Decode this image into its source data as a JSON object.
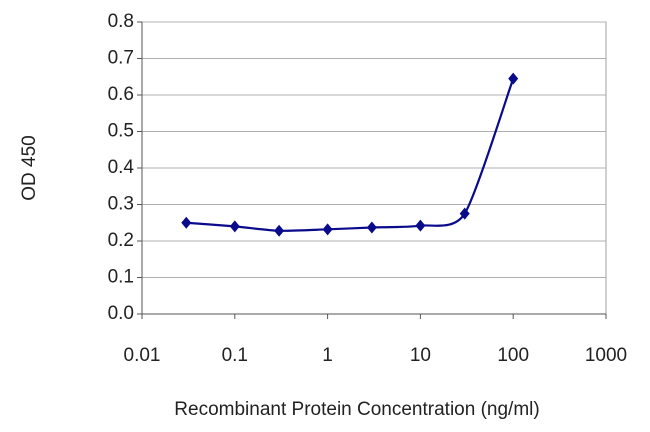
{
  "chart_data": {
    "type": "line",
    "x_label": "Recombinant Protein Concentration (ng/ml)",
    "y_label": "OD 450",
    "x": [
      0.03,
      0.1,
      0.3,
      1,
      3,
      10,
      30,
      100
    ],
    "series": [
      {
        "color": "#0a0a8c",
        "values": [
          0.25,
          0.24,
          0.228,
          0.232,
          0.237,
          0.242,
          0.275,
          0.645
        ]
      }
    ],
    "x_log": true,
    "xlim": [
      0.01,
      1000
    ],
    "xticks": [
      0.01,
      0.1,
      1,
      10,
      100,
      1000
    ],
    "ylim": [
      0,
      0.8
    ],
    "yticks": [
      {
        "value": 0,
        "label": "0.0"
      },
      {
        "value": 0.1,
        "label": "0.1"
      },
      {
        "value": 0.2,
        "label": "0.2"
      },
      {
        "value": 0.3,
        "label": "0.3"
      },
      {
        "value": 0.4,
        "label": "0.4"
      },
      {
        "value": 0.5,
        "label": "0.5"
      },
      {
        "value": 0.6,
        "label": "0.6"
      },
      {
        "value": 0.7,
        "label": "0.7"
      },
      {
        "value": 0.8,
        "label": "0.8"
      }
    ],
    "grid": true
  }
}
